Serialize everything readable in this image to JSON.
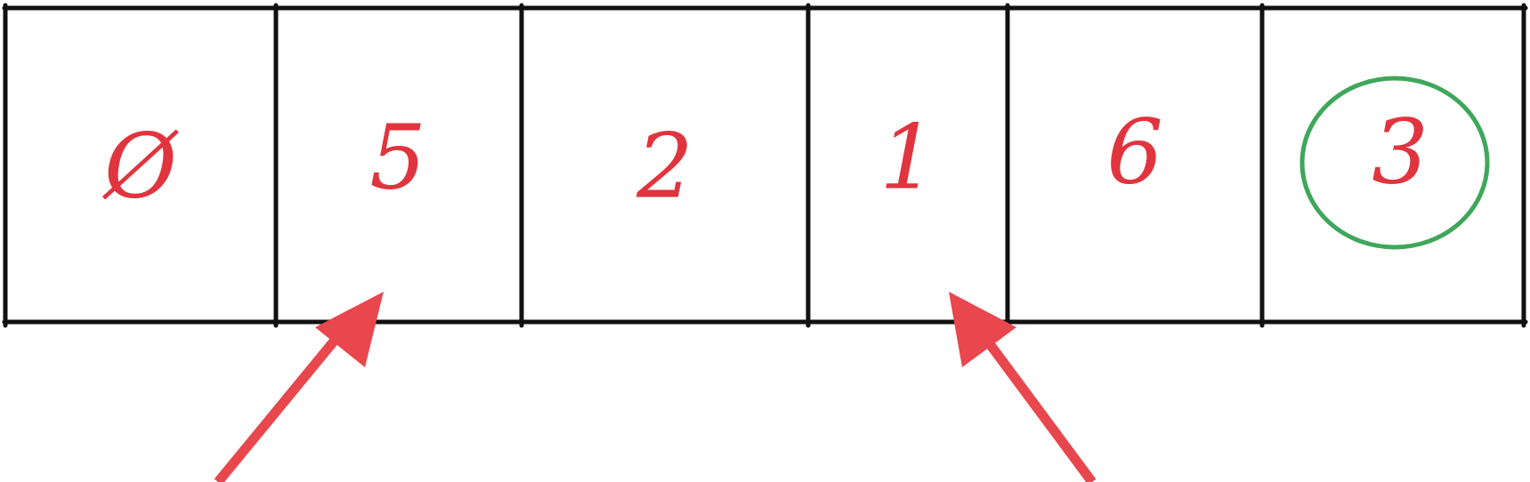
{
  "array": {
    "cells": [
      "Ø",
      "5",
      "2",
      "1",
      "6",
      "3"
    ],
    "highlighted_index": 5
  },
  "pointers": [
    {
      "name": "left-pointer",
      "target_index": 1
    },
    {
      "name": "right-pointer",
      "target_index": 3
    }
  ],
  "colors": {
    "grid": "#111111",
    "digit": "#e0343e",
    "arrow": "#e8474d",
    "highlight_circle": "#3fa75a"
  }
}
